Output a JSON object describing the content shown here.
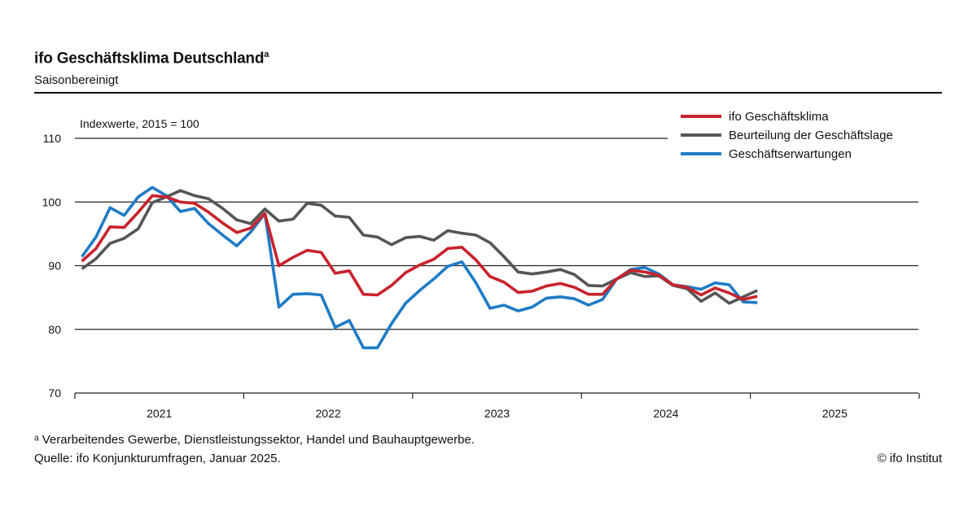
{
  "header": {
    "title": "ifo Geschäftsklima Deutschland",
    "title_mark": "a",
    "subtitle": "Saisonbereinigt"
  },
  "footer": {
    "footnote": "ᵃ Verarbeitendes Gewerbe, Dienstleistungssektor, Handel und Bauhauptgewerbe.",
    "source": "Quelle: ifo Konjunkturumfragen, Januar 2025.",
    "copyright": "© ifo Institut"
  },
  "chart_data": {
    "type": "line",
    "unit_label": "Indexwerte, 2015 = 100",
    "ylim": [
      70,
      110
    ],
    "yticks": [
      70,
      80,
      90,
      100,
      110
    ],
    "x_tick_labels": [
      "2021",
      "2022",
      "2023",
      "2024",
      "2025"
    ],
    "x_start": "2021-01",
    "grid": true,
    "legend_position": "top-right",
    "series": [
      {
        "name": "ifo Geschäftsklima",
        "color": "#c8232c",
        "values": [
          90.7,
          92.7,
          96.1,
          96.0,
          98.4,
          101.0,
          100.8,
          100.0,
          99.8,
          98.4,
          96.7,
          95.2,
          95.9,
          98.2,
          90.0,
          91.3,
          92.4,
          92.1,
          88.8,
          89.2,
          85.5,
          85.4,
          86.9,
          88.9,
          90.1,
          91.0,
          92.7,
          92.9,
          90.9,
          88.3,
          87.4,
          85.8,
          86.0,
          86.8,
          87.2,
          86.6,
          85.5,
          85.5,
          87.9,
          89.3,
          89.0,
          88.5,
          87.0,
          86.6,
          85.4,
          86.5,
          85.7,
          84.7,
          85.2
        ]
      },
      {
        "name": "Beurteilung der Geschäftslage",
        "color": "#555555",
        "values": [
          89.5,
          91.1,
          93.5,
          94.3,
          95.8,
          99.9,
          100.8,
          101.8,
          101.0,
          100.5,
          99.0,
          97.2,
          96.6,
          98.9,
          97.0,
          97.3,
          99.8,
          99.5,
          97.8,
          97.6,
          94.8,
          94.5,
          93.3,
          94.4,
          94.6,
          94.0,
          95.5,
          95.1,
          94.8,
          93.6,
          91.4,
          89.0,
          88.7,
          89.0,
          89.4,
          88.6,
          86.9,
          86.8,
          87.9,
          88.9,
          88.3,
          88.4,
          86.9,
          86.4,
          84.4,
          85.7,
          84.1,
          85.1,
          86.1
        ]
      },
      {
        "name": "Geschäftserwartungen",
        "color": "#1f7bc5",
        "values": [
          91.4,
          94.5,
          99.1,
          97.9,
          100.8,
          102.3,
          101.0,
          98.5,
          99.0,
          96.6,
          94.8,
          93.1,
          95.3,
          98.2,
          83.5,
          85.5,
          85.6,
          85.4,
          80.3,
          81.4,
          77.1,
          77.1,
          80.9,
          84.1,
          86.1,
          87.9,
          89.9,
          90.6,
          87.3,
          83.3,
          83.8,
          82.9,
          83.5,
          84.9,
          85.1,
          84.8,
          83.8,
          84.7,
          87.9,
          89.4,
          89.7,
          88.7,
          87.0,
          86.7,
          86.3,
          87.3,
          87.0,
          84.3,
          84.2
        ]
      }
    ]
  }
}
